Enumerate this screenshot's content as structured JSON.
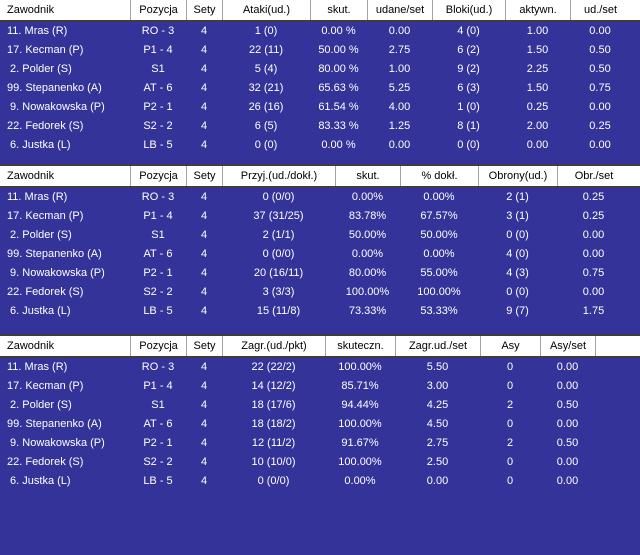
{
  "colors": {
    "row_background": "#333399",
    "header_background": "#ffffff",
    "header_text": "#000000",
    "row_text": "#ffffff",
    "divider_line": "#3d3d3d",
    "header_separator": "#a3a3a3"
  },
  "tables": [
    {
      "name": "attack-and-block-stats",
      "columns": [
        "Zawodnik",
        "Pozycja",
        "Sety",
        "Ataki(ud.)",
        "skut.",
        "udane/set",
        "Bloki(ud.)",
        "aktywn.",
        "ud./set"
      ],
      "rows": [
        [
          "11. Mras (R)",
          "RO - 3",
          "4",
          "1 (0)",
          "0.00 %",
          "0.00",
          "4 (0)",
          "1.00",
          "0.00"
        ],
        [
          "17. Kecman (P)",
          "P1 - 4",
          "4",
          "22 (11)",
          "50.00 %",
          "2.75",
          "6 (2)",
          "1.50",
          "0.50"
        ],
        [
          " 2. Polder (S)",
          "S1",
          "4",
          "5 (4)",
          "80.00 %",
          "1.00",
          "9 (2)",
          "2.25",
          "0.50"
        ],
        [
          "99. Stepanenko (A)",
          "AT - 6",
          "4",
          "32 (21)",
          "65.63 %",
          "5.25",
          "6 (3)",
          "1.50",
          "0.75"
        ],
        [
          " 9. Nowakowska (P)",
          "P2 - 1",
          "4",
          "26 (16)",
          "61.54 %",
          "4.00",
          "1 (0)",
          "0.25",
          "0.00"
        ],
        [
          "22. Fedorek (S)",
          "S2 - 2",
          "4",
          "6 (5)",
          "83.33 %",
          "1.25",
          "8 (1)",
          "2.00",
          "0.25"
        ],
        [
          " 6. Justka (L)",
          "LB - 5",
          "4",
          "0 (0)",
          "0.00 %",
          "0.00",
          "0 (0)",
          "0.00",
          "0.00"
        ]
      ]
    },
    {
      "name": "reception-and-defense-stats",
      "columns": [
        "Zawodnik",
        "Pozycja",
        "Sety",
        "Przyj.(ud./dokł.)",
        "skut.",
        "% dokł.",
        "Obrony(ud.)",
        "Obr./set"
      ],
      "rows": [
        [
          "11. Mras (R)",
          "RO - 3",
          "4",
          "0 (0/0)",
          "0.00%",
          "0.00%",
          "2 (1)",
          "0.25"
        ],
        [
          "17. Kecman (P)",
          "P1 - 4",
          "4",
          "37 (31/25)",
          "83.78%",
          "67.57%",
          "3 (1)",
          "0.25"
        ],
        [
          " 2. Polder (S)",
          "S1",
          "4",
          "2 (1/1)",
          "50.00%",
          "50.00%",
          "0 (0)",
          "0.00"
        ],
        [
          "99. Stepanenko (A)",
          "AT - 6",
          "4",
          "0 (0/0)",
          "0.00%",
          "0.00%",
          "4 (0)",
          "0.00"
        ],
        [
          " 9. Nowakowska (P)",
          "P2 - 1",
          "4",
          "20 (16/11)",
          "80.00%",
          "55.00%",
          "4 (3)",
          "0.75"
        ],
        [
          "22. Fedorek (S)",
          "S2 - 2",
          "4",
          "3 (3/3)",
          "100.00%",
          "100.00%",
          "0 (0)",
          "0.00"
        ],
        [
          " 6. Justka (L)",
          "LB - 5",
          "4",
          "15 (11/8)",
          "73.33%",
          "53.33%",
          "9 (7)",
          "1.75"
        ]
      ]
    },
    {
      "name": "serve-stats",
      "columns": [
        "Zawodnik",
        "Pozycja",
        "Sety",
        "Zagr.(ud./pkt)",
        "skuteczn.",
        "Zagr.ud./set",
        "Asy",
        "Asy/set",
        ""
      ],
      "rows": [
        [
          "11. Mras (R)",
          "RO - 3",
          "4",
          "22 (22/2)",
          "100.00%",
          "5.50",
          "0",
          "0.00",
          ""
        ],
        [
          "17. Kecman (P)",
          "P1 - 4",
          "4",
          "14 (12/2)",
          "85.71%",
          "3.00",
          "0",
          "0.00",
          ""
        ],
        [
          " 2. Polder (S)",
          "S1",
          "4",
          "18 (17/6)",
          "94.44%",
          "4.25",
          "2",
          "0.50",
          ""
        ],
        [
          "99. Stepanenko (A)",
          "AT - 6",
          "4",
          "18 (18/2)",
          "100.00%",
          "4.50",
          "0",
          "0.00",
          ""
        ],
        [
          " 9. Nowakowska (P)",
          "P2 - 1",
          "4",
          "12 (11/2)",
          "91.67%",
          "2.75",
          "2",
          "0.50",
          ""
        ],
        [
          "22. Fedorek (S)",
          "S2 - 2",
          "4",
          "10 (10/0)",
          "100.00%",
          "2.50",
          "0",
          "0.00",
          ""
        ],
        [
          " 6. Justka (L)",
          "LB - 5",
          "4",
          "0 (0/0)",
          "0.00%",
          "0.00",
          "0",
          "0.00",
          ""
        ]
      ]
    }
  ]
}
